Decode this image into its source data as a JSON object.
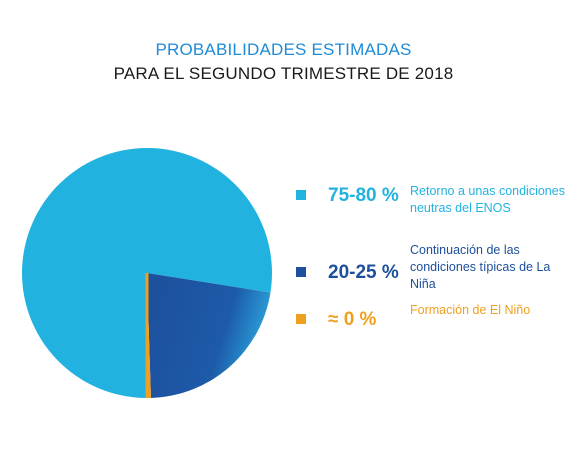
{
  "title": "PROBABILIDADES ESTIMADAS",
  "subtitle": "PARA EL SEGUNDO TRIMESTRE DE 2018",
  "chart_data": {
    "type": "pie",
    "title": "PROBABILIDADES ESTIMADAS",
    "subtitle": "PARA EL SEGUNDO TRIMESTRE DE 2018",
    "slices": [
      {
        "label": "75-80 %",
        "description": "Retorno a unas condiciones neutras del ENOS",
        "value": 77.5,
        "color": "#22b2e0"
      },
      {
        "label": "20-25 %",
        "description": "Continuación de las condiciones típicas de La Niña",
        "value": 22,
        "color": "#1d4f9c"
      },
      {
        "label": "≈ 0 %",
        "description": "Formación de El Niño",
        "value": 0.5,
        "color": "#f0a020"
      }
    ],
    "legend_position": "right"
  },
  "legend": [
    {
      "pct": "75-80 %",
      "desc": "Retorno a unas condiciones neutras del ENOS",
      "color": "#22b2e0"
    },
    {
      "pct": "20-25 %",
      "desc": "Continuación de las condiciones típicas de La Niña",
      "color": "#1d4f9c"
    },
    {
      "pct": "≈ 0 %",
      "desc": "Formación de El Niño",
      "color": "#f0a020"
    }
  ]
}
